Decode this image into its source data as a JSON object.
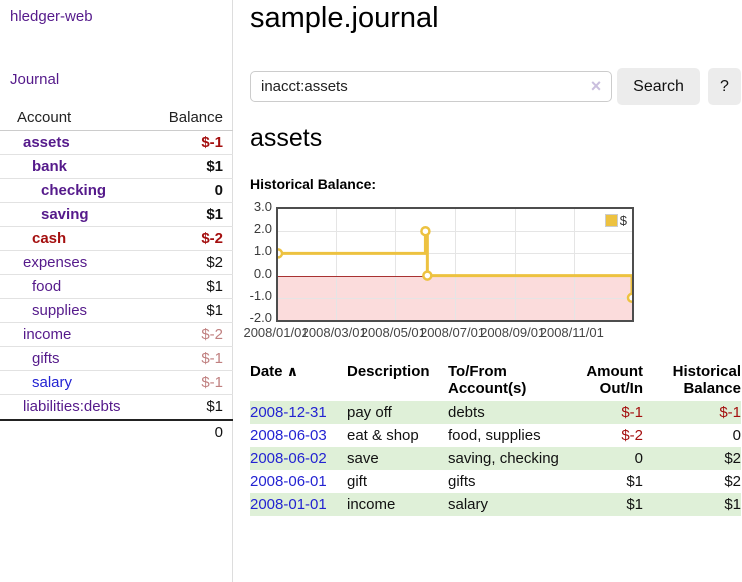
{
  "app": {
    "brand": "hledger-web",
    "nav_journal_label": "Journal"
  },
  "sidebar": {
    "accounts_header": {
      "account": "Account",
      "balance": "Balance"
    },
    "accounts": [
      {
        "name": "assets",
        "balance": "$-1",
        "level": 1,
        "bold": true,
        "name_color": "purple",
        "balance_color": "negstrong"
      },
      {
        "name": "bank",
        "balance": "$1",
        "level": 2,
        "bold": true,
        "name_color": "purple",
        "balance_color": "pos"
      },
      {
        "name": "checking",
        "balance": "0",
        "level": 3,
        "bold": true,
        "name_color": "purple",
        "balance_color": "pos"
      },
      {
        "name": "saving",
        "balance": "$1",
        "level": 3,
        "bold": true,
        "name_color": "purple",
        "balance_color": "pos"
      },
      {
        "name": "cash",
        "balance": "$-2",
        "level": 2,
        "bold": true,
        "name_color": "negstrong",
        "balance_color": "negstrong"
      },
      {
        "name": "expenses",
        "balance": "$2",
        "level": 1,
        "bold": false,
        "name_color": "purple",
        "balance_color": "pos"
      },
      {
        "name": "food",
        "balance": "$1",
        "level": 2,
        "bold": false,
        "name_color": "purple",
        "balance_color": "pos"
      },
      {
        "name": "supplies",
        "balance": "$1",
        "level": 2,
        "bold": false,
        "name_color": "purple",
        "balance_color": "pos"
      },
      {
        "name": "income",
        "balance": "$-2",
        "level": 1,
        "bold": false,
        "name_color": "purple",
        "balance_color": "negsoft"
      },
      {
        "name": "gifts",
        "balance": "$-1",
        "level": 2,
        "bold": false,
        "name_color": "purple",
        "balance_color": "negsoft"
      },
      {
        "name": "salary",
        "balance": "$-1",
        "level": 2,
        "bold": false,
        "name_color": "blue",
        "balance_color": "negsoft"
      },
      {
        "name": "liabilities:debts",
        "balance": "$1",
        "level": 1,
        "bold": false,
        "name_color": "purple",
        "balance_color": "pos"
      }
    ],
    "total": "0"
  },
  "header": {
    "title": "sample.journal"
  },
  "search": {
    "value": "inacct:assets",
    "clear_icon": "×",
    "button_label": "Search",
    "help_label": "?"
  },
  "account_page": {
    "heading": "assets",
    "chart_title": "Historical Balance:"
  },
  "chart_data": {
    "type": "line",
    "title": "Historical Balance",
    "step": true,
    "series": [
      {
        "name": "$",
        "color": "#edc240",
        "points": [
          [
            "2008-01-01",
            1
          ],
          [
            "2008-06-01",
            2
          ],
          [
            "2008-06-03",
            0
          ],
          [
            "2008-12-31",
            -1
          ]
        ]
      }
    ],
    "x_ticks": [
      "2008/01/01",
      "2008/03/01",
      "2008/05/01",
      "2008/07/01",
      "2008/09/01",
      "2008/11/01"
    ],
    "y_ticks": [
      "3.0",
      "2.0",
      "1.0",
      "0.0",
      "-1.0",
      "-2.0"
    ],
    "xlim": [
      "2008-01-01",
      "2008-12-31"
    ],
    "ylim": [
      -2,
      3
    ],
    "grid": true,
    "legend": {
      "label": "$",
      "position": "top-right"
    },
    "negative_region_color": "#fbdcdc",
    "zero_line_color": "#a83232",
    "marker": {
      "fill": "#ffffff",
      "stroke": "#edc240"
    }
  },
  "register": {
    "headers": {
      "date": "Date",
      "sort_caret": "∧",
      "description": "Description",
      "tofrom_line1": "To/From",
      "tofrom_line2": "Account(s)",
      "amount_line1": "Amount",
      "amount_line2": "Out/In",
      "balance_line1": "Historical",
      "balance_line2": "Balance"
    },
    "rows": [
      {
        "date": "2008-12-31",
        "description": "pay off",
        "accounts": "debts",
        "amount": "$-1",
        "amount_neg": true,
        "balance": "$-1",
        "balance_neg": true
      },
      {
        "date": "2008-06-03",
        "description": "eat & shop",
        "accounts": "food, supplies",
        "amount": "$-2",
        "amount_neg": true,
        "balance": "0",
        "balance_neg": false
      },
      {
        "date": "2008-06-02",
        "description": "save",
        "accounts": "saving, checking",
        "amount": "0",
        "amount_neg": false,
        "balance": "$2",
        "balance_neg": false
      },
      {
        "date": "2008-06-01",
        "description": "gift",
        "accounts": "gifts",
        "amount": "$1",
        "amount_neg": false,
        "balance": "$2",
        "balance_neg": false
      },
      {
        "date": "2008-01-01",
        "description": "income",
        "accounts": "salary",
        "amount": "$1",
        "amount_neg": false,
        "balance": "$1",
        "balance_neg": false
      }
    ]
  }
}
